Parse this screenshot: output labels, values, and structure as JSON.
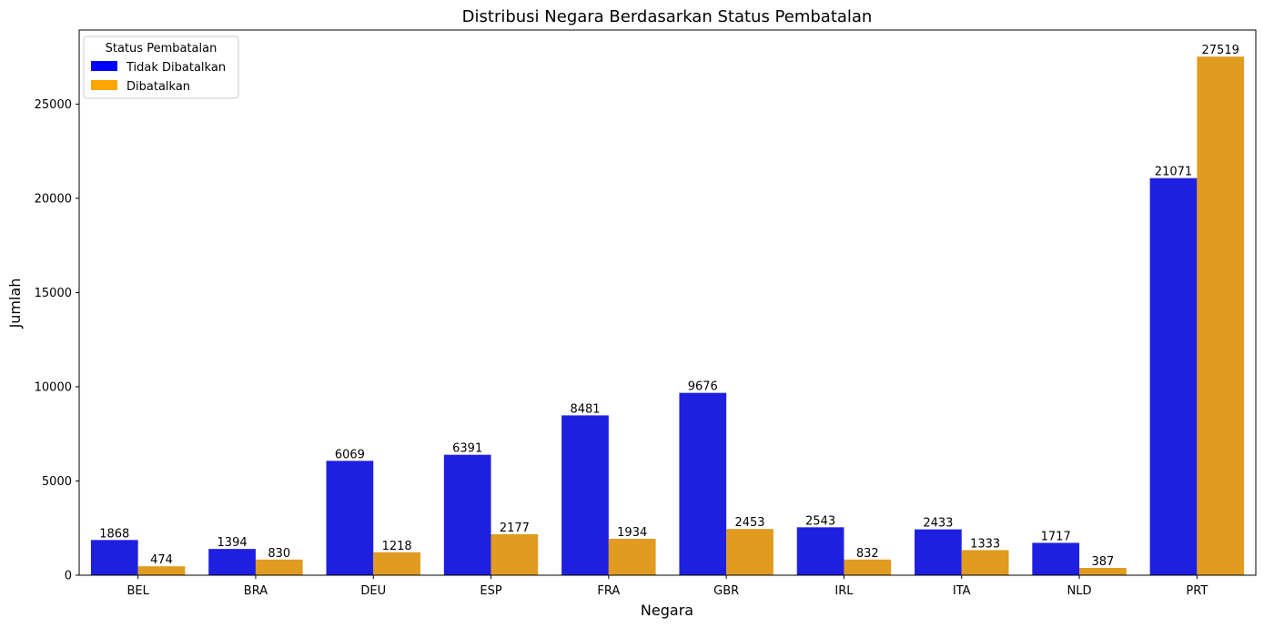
{
  "chart_data": {
    "type": "bar",
    "title": "Distribusi Negara Berdasarkan Status Pembatalan",
    "xlabel": "Negara",
    "ylabel": "Jumlah",
    "categories": [
      "BEL",
      "BRA",
      "DEU",
      "ESP",
      "FRA",
      "GBR",
      "IRL",
      "ITA",
      "NLD",
      "PRT"
    ],
    "series": [
      {
        "name": "Tidak Dibatalkan",
        "color": "#1f1fe0",
        "values": [
          1868,
          1394,
          6069,
          6391,
          8481,
          9676,
          2543,
          2433,
          1717,
          21071
        ]
      },
      {
        "name": "Dibatalkan",
        "color": "#e09b20",
        "values": [
          474,
          830,
          1218,
          2177,
          1934,
          2453,
          832,
          1333,
          387,
          27519
        ]
      }
    ],
    "ylim": [
      0,
      28930
    ],
    "yticks": [
      0,
      5000,
      10000,
      15000,
      20000,
      25000
    ],
    "grid": false,
    "legend": {
      "title": "Status Pembatalan",
      "placement": "top-left",
      "entries": [
        {
          "label": "Tidak Dibatalkan",
          "color": "#0000ff"
        },
        {
          "label": "Dibatalkan",
          "color": "#ffa500"
        }
      ]
    }
  }
}
